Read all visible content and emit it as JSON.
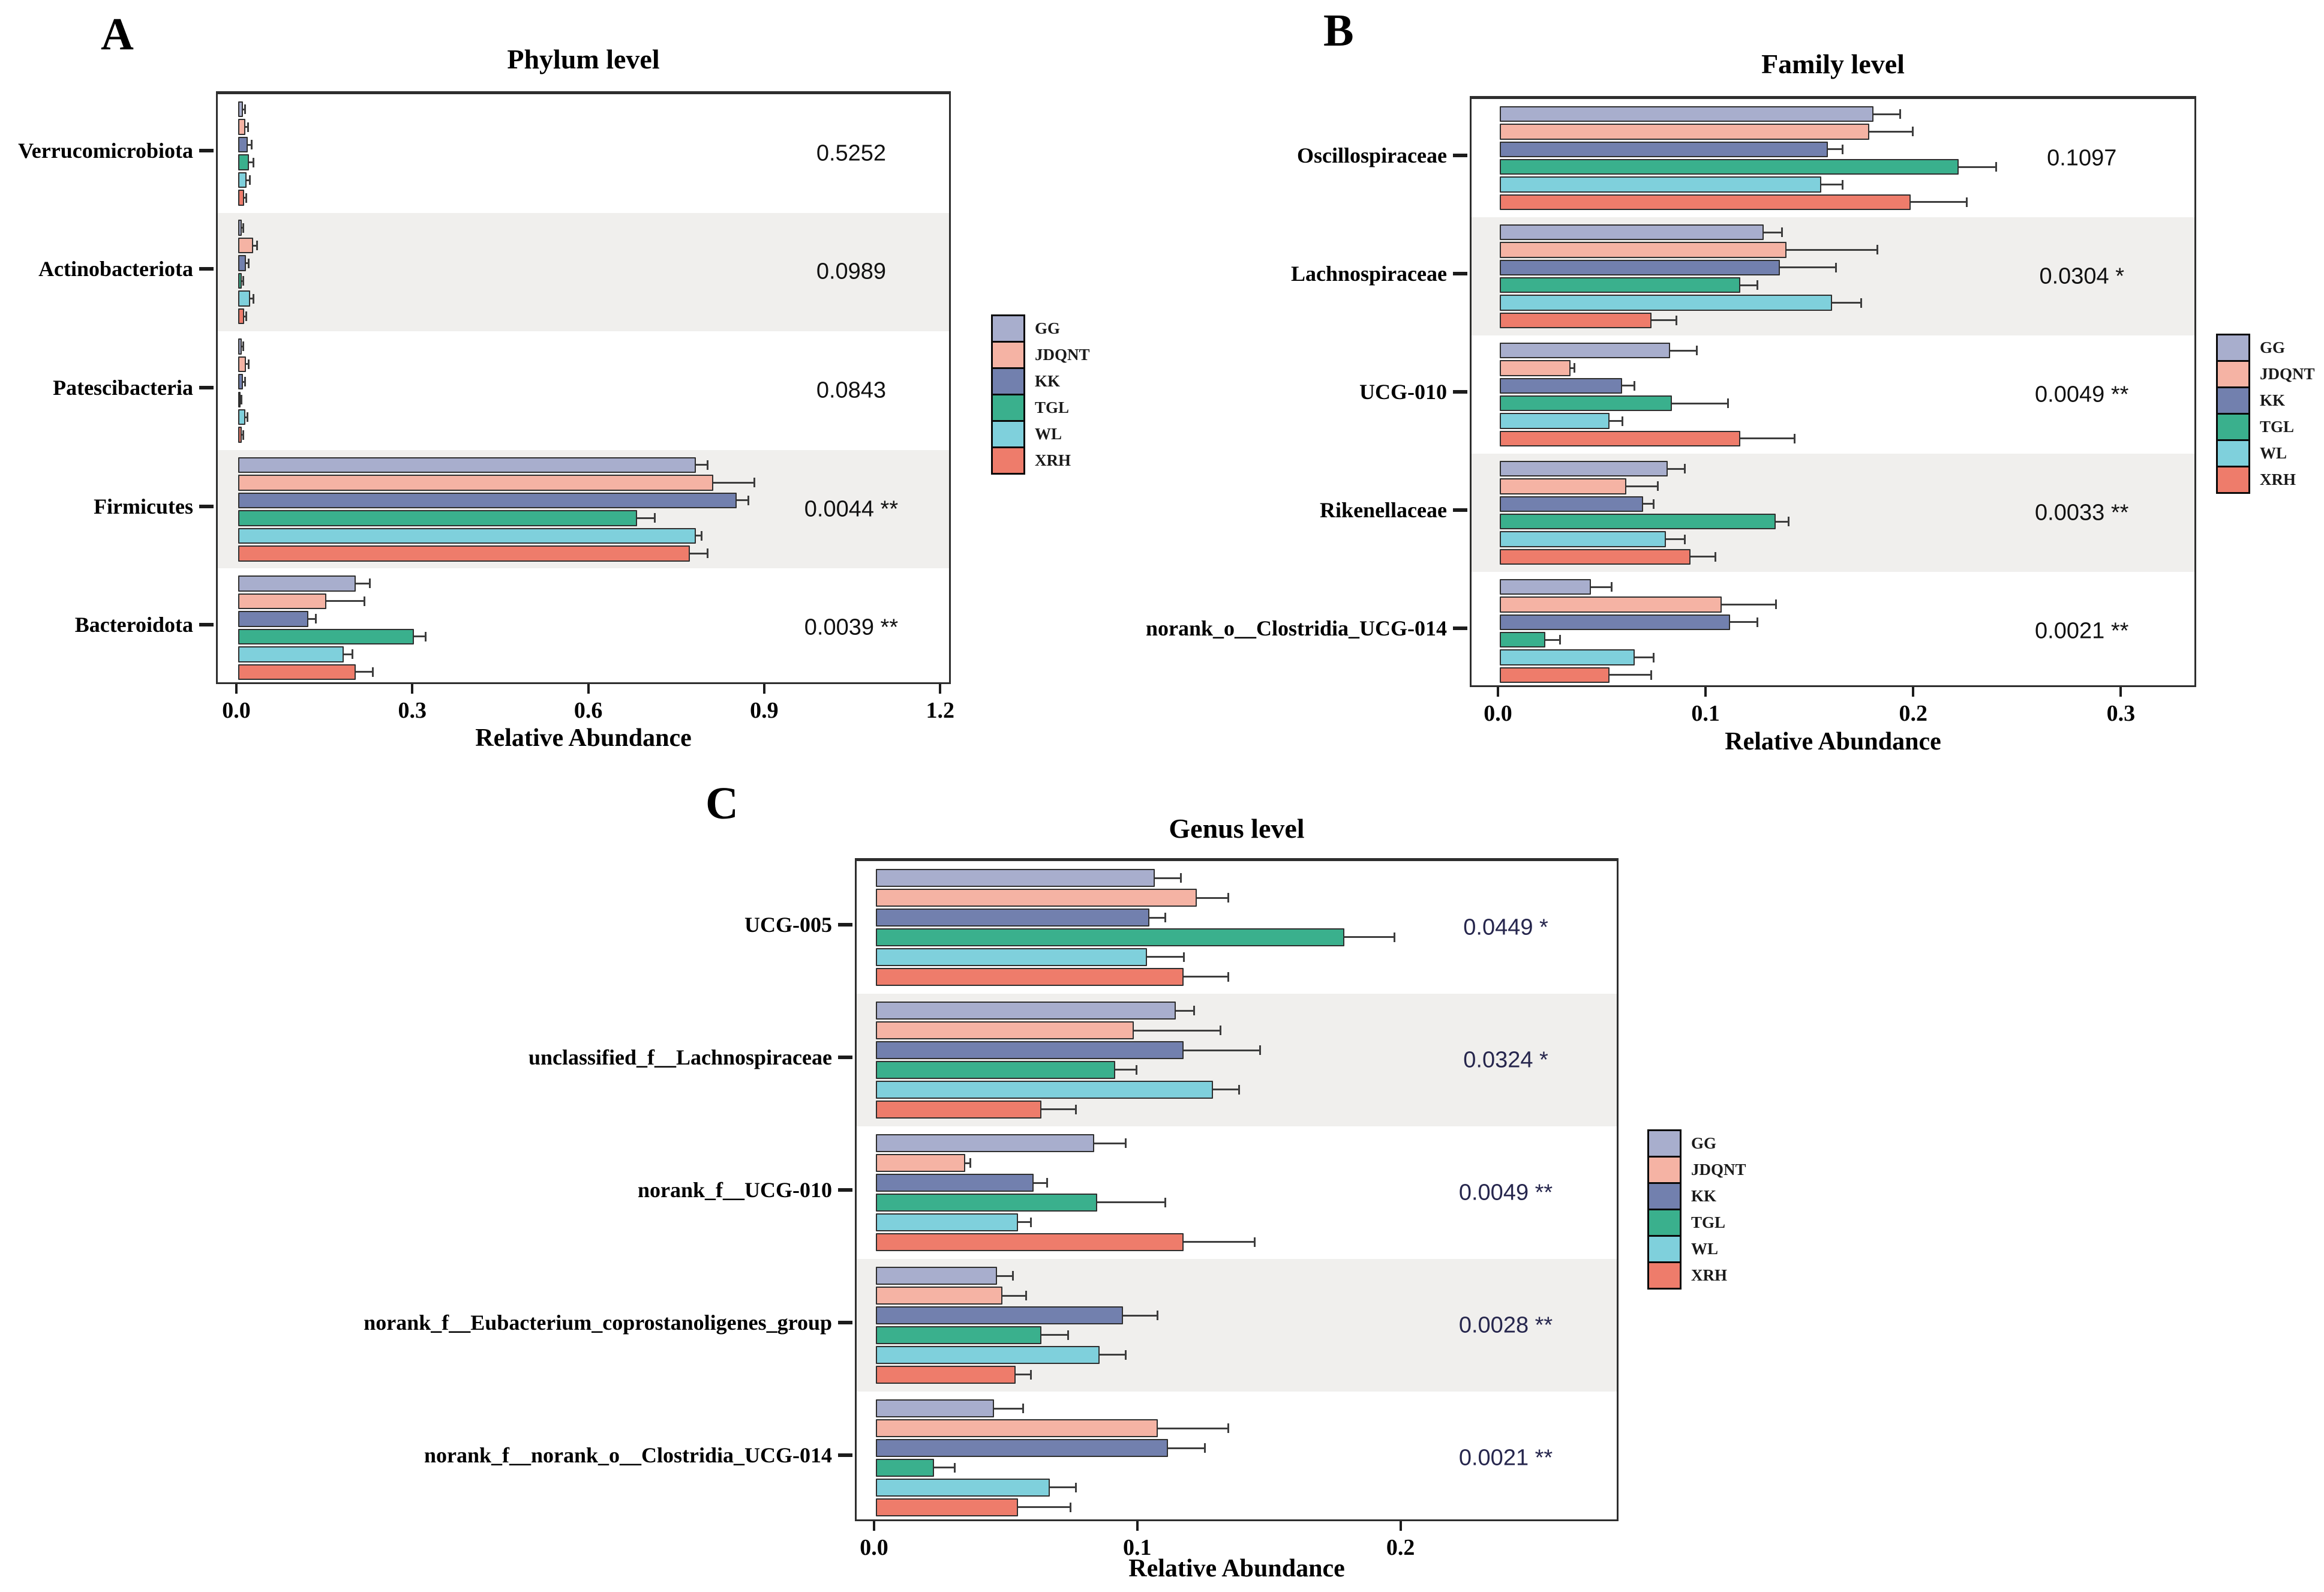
{
  "legend": {
    "entries": [
      {
        "label": "GG",
        "color": "#a8aecd"
      },
      {
        "label": "JDQNT",
        "color": "#f5b3a4"
      },
      {
        "label": "KK",
        "color": "#7280ae"
      },
      {
        "label": "TGL",
        "color": "#3ab08d"
      },
      {
        "label": "WL",
        "color": "#7fd0dc"
      },
      {
        "label": "XRH",
        "color": "#ee7c6b"
      }
    ]
  },
  "chart_data": [
    {
      "type": "bar",
      "orientation": "horizontal",
      "panel_letter": "A",
      "title": "Phylum level",
      "xlabel": "Relative  Abundance",
      "xlim": [
        0,
        1.21
      ],
      "xticks": [
        0,
        0.3,
        0.6,
        0.9,
        1.2
      ],
      "xtick_labels": [
        "0.0",
        "0.3",
        "0.6",
        "0.9",
        "1.2"
      ],
      "groups": [
        "GG",
        "JDQNT",
        "KK",
        "TGL",
        "WL",
        "XRH"
      ],
      "p_color": "#111111",
      "categories": [
        {
          "name": "Verrucomicrobiota",
          "p_value": "0.5252",
          "values": [
            0.008,
            0.012,
            0.016,
            0.018,
            0.014,
            0.01
          ],
          "errors": [
            0.004,
            0.005,
            0.007,
            0.008,
            0.006,
            0.004
          ]
        },
        {
          "name": "Actinobacteriota",
          "p_value": "0.0989",
          "values": [
            0.006,
            0.026,
            0.013,
            0.006,
            0.02,
            0.01
          ],
          "errors": [
            0.003,
            0.006,
            0.005,
            0.003,
            0.006,
            0.004
          ]
        },
        {
          "name": "Patescibacteria",
          "p_value": "0.0843",
          "values": [
            0.006,
            0.013,
            0.008,
            0.004,
            0.012,
            0.006
          ],
          "errors": [
            0.003,
            0.005,
            0.004,
            0.002,
            0.004,
            0.003
          ]
        },
        {
          "name": "Firmicutes",
          "p_value": "0.0044 **",
          "values": [
            0.78,
            0.81,
            0.85,
            0.68,
            0.78,
            0.77
          ],
          "errors": [
            0.02,
            0.07,
            0.02,
            0.03,
            0.01,
            0.03
          ]
        },
        {
          "name": "Bacteroidota",
          "p_value": "0.0039 **",
          "values": [
            0.2,
            0.15,
            0.12,
            0.3,
            0.18,
            0.2
          ],
          "errors": [
            0.025,
            0.065,
            0.012,
            0.02,
            0.015,
            0.03
          ]
        }
      ]
    },
    {
      "type": "bar",
      "orientation": "horizontal",
      "panel_letter": "B",
      "title": "Family level",
      "xlabel": "Relative  Abundance",
      "xlim": [
        0,
        0.334
      ],
      "xticks": [
        0,
        0.1,
        0.2,
        0.3
      ],
      "xtick_labels": [
        "0.0",
        "0.1",
        "0.2",
        "0.3"
      ],
      "groups": [
        "GG",
        "JDQNT",
        "KK",
        "TGL",
        "WL",
        "XRH"
      ],
      "p_color": "#111111",
      "categories": [
        {
          "name": "Oscillospiraceae",
          "p_value": "0.1097",
          "values": [
            0.18,
            0.178,
            0.158,
            0.221,
            0.155,
            0.198
          ],
          "errors": [
            0.013,
            0.021,
            0.007,
            0.018,
            0.01,
            0.027
          ]
        },
        {
          "name": "Lachnospiraceae",
          "p_value": "0.0304 *",
          "values": [
            0.127,
            0.138,
            0.135,
            0.116,
            0.16,
            0.073
          ],
          "errors": [
            0.009,
            0.044,
            0.027,
            0.008,
            0.014,
            0.012
          ]
        },
        {
          "name": "UCG-010",
          "p_value": "0.0049 **",
          "values": [
            0.082,
            0.034,
            0.059,
            0.083,
            0.053,
            0.116
          ],
          "errors": [
            0.013,
            0.002,
            0.006,
            0.027,
            0.006,
            0.026
          ]
        },
        {
          "name": "Rikenellaceae",
          "p_value": "0.0033 **",
          "values": [
            0.081,
            0.061,
            0.069,
            0.133,
            0.08,
            0.092
          ],
          "errors": [
            0.008,
            0.015,
            0.005,
            0.006,
            0.009,
            0.012
          ]
        },
        {
          "name": "norank_o__Clostridia_UCG-014",
          "p_value": "0.0021 **",
          "values": [
            0.044,
            0.107,
            0.111,
            0.022,
            0.065,
            0.053
          ],
          "errors": [
            0.01,
            0.026,
            0.013,
            0.007,
            0.009,
            0.02
          ]
        }
      ]
    },
    {
      "type": "bar",
      "orientation": "horizontal",
      "panel_letter": "C",
      "title": "Genus level",
      "xlabel": "Relative Abundance",
      "xlim": [
        0,
        0.281
      ],
      "xticks": [
        0,
        0.1,
        0.2
      ],
      "xtick_labels": [
        "0.0",
        "0.1",
        "0.2"
      ],
      "groups": [
        "GG",
        "JDQNT",
        "KK",
        "TGL",
        "WL",
        "XRH"
      ],
      "p_color": "#26264d",
      "categories": [
        {
          "name": "UCG-005",
          "p_value": "0.0449 *",
          "values": [
            0.106,
            0.122,
            0.104,
            0.178,
            0.103,
            0.117
          ],
          "errors": [
            0.01,
            0.012,
            0.006,
            0.019,
            0.014,
            0.017
          ]
        },
        {
          "name": "unclassified_f__Lachnospiraceae",
          "p_value": "0.0324 *",
          "values": [
            0.114,
            0.098,
            0.117,
            0.091,
            0.128,
            0.063
          ],
          "errors": [
            0.007,
            0.033,
            0.029,
            0.008,
            0.01,
            0.013
          ]
        },
        {
          "name": "norank_f__UCG-010",
          "p_value": "0.0049 **",
          "values": [
            0.083,
            0.034,
            0.06,
            0.084,
            0.054,
            0.117
          ],
          "errors": [
            0.012,
            0.002,
            0.005,
            0.026,
            0.005,
            0.027
          ]
        },
        {
          "name": "norank_f__Eubacterium_coprostanoligenes_group",
          "p_value": "0.0028 **",
          "values": [
            0.046,
            0.048,
            0.094,
            0.063,
            0.085,
            0.053
          ],
          "errors": [
            0.006,
            0.009,
            0.013,
            0.01,
            0.01,
            0.006
          ]
        },
        {
          "name": "norank_f__norank_o__Clostridia_UCG-014",
          "p_value": "0.0021 **",
          "values": [
            0.045,
            0.107,
            0.111,
            0.022,
            0.066,
            0.054
          ],
          "errors": [
            0.011,
            0.027,
            0.014,
            0.008,
            0.01,
            0.02
          ]
        }
      ]
    }
  ]
}
